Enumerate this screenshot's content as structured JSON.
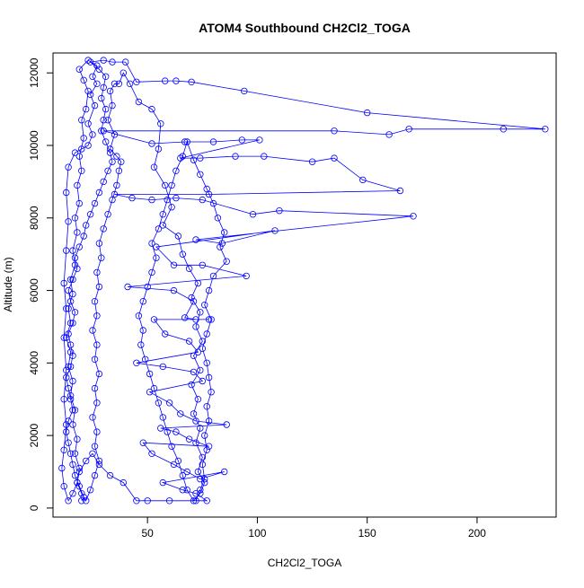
{
  "chart_data": {
    "type": "scatter",
    "title": "ATOM4 Southbound CH2Cl2_TOGA",
    "xlabel": "CH2Cl2_TOGA",
    "ylabel": "Altitude (m)",
    "xlim": [
      7,
      236
    ],
    "ylim": [
      -250,
      12550
    ],
    "xticks": [
      50,
      100,
      150,
      200
    ],
    "yticks": [
      0,
      2000,
      4000,
      6000,
      8000,
      10000,
      12000
    ],
    "grid": false,
    "legend": "none",
    "marker": "open-circle",
    "connected": true,
    "series": [
      {
        "color": "#0000ff",
        "points": [
          [
            20,
            200
          ],
          [
            21,
            300
          ],
          [
            19,
            600
          ],
          [
            17,
            900
          ],
          [
            16,
            1200
          ],
          [
            15,
            1500
          ],
          [
            14,
            1800
          ],
          [
            13,
            2100
          ],
          [
            14,
            2400
          ],
          [
            16,
            2700
          ],
          [
            15,
            3000
          ],
          [
            14,
            3300
          ],
          [
            13,
            3600
          ],
          [
            15,
            3900
          ],
          [
            16,
            4200
          ],
          [
            15,
            4500
          ],
          [
            14,
            4800
          ],
          [
            16,
            5100
          ],
          [
            17,
            5400
          ],
          [
            15,
            5700
          ],
          [
            14,
            6000
          ],
          [
            16,
            6300
          ],
          [
            18,
            6600
          ],
          [
            17,
            6900
          ],
          [
            19,
            7200
          ],
          [
            21,
            7500
          ],
          [
            22,
            7800
          ],
          [
            24,
            8100
          ],
          [
            26,
            8400
          ],
          [
            28,
            8700
          ],
          [
            30,
            9000
          ],
          [
            32,
            9300
          ],
          [
            34,
            9550
          ],
          [
            33,
            9800
          ],
          [
            31,
            10100
          ],
          [
            29,
            10400
          ],
          [
            30,
            10700
          ],
          [
            31,
            11000
          ],
          [
            29,
            11300
          ],
          [
            30,
            11600
          ],
          [
            31,
            11900
          ],
          [
            28,
            12100
          ],
          [
            24,
            12300
          ],
          [
            30,
            12350
          ],
          [
            34,
            12300
          ],
          [
            40,
            12300
          ],
          [
            45,
            11750
          ],
          [
            58,
            11780
          ],
          [
            63,
            11780
          ],
          [
            70,
            11750
          ],
          [
            94,
            11500
          ],
          [
            150,
            10900
          ],
          [
            231,
            10450
          ],
          [
            212,
            10450
          ],
          [
            169,
            10450
          ],
          [
            160,
            10300
          ],
          [
            135,
            10400
          ],
          [
            30,
            10400
          ],
          [
            52,
            10050
          ],
          [
            67,
            10100
          ],
          [
            80,
            10100
          ],
          [
            93,
            10150
          ],
          [
            101,
            10150
          ],
          [
            65,
            9650
          ],
          [
            74,
            9650
          ],
          [
            90,
            9700
          ],
          [
            103,
            9700
          ],
          [
            125,
            9550
          ],
          [
            135,
            9650
          ],
          [
            148,
            9050
          ],
          [
            165,
            8750
          ],
          [
            78,
            8650
          ],
          [
            35,
            8650
          ],
          [
            43,
            8550
          ],
          [
            52,
            8500
          ],
          [
            63,
            8550
          ],
          [
            75,
            8500
          ],
          [
            98,
            8100
          ],
          [
            110,
            8200
          ],
          [
            171,
            8050
          ],
          [
            72,
            7400
          ],
          [
            84,
            7300
          ],
          [
            108,
            7650
          ],
          [
            54,
            7200
          ],
          [
            62,
            6700
          ],
          [
            75,
            6700
          ],
          [
            95,
            6400
          ],
          [
            41,
            6100
          ],
          [
            62,
            6000
          ],
          [
            71,
            5700
          ],
          [
            67,
            5250
          ],
          [
            72,
            5200
          ],
          [
            78,
            5200
          ],
          [
            53,
            5200
          ],
          [
            58,
            4800
          ],
          [
            69,
            4600
          ],
          [
            73,
            4300
          ],
          [
            45,
            4000
          ],
          [
            57,
            3900
          ],
          [
            71,
            3750
          ],
          [
            75,
            3500
          ],
          [
            51,
            3200
          ],
          [
            60,
            2900
          ],
          [
            65,
            2600
          ],
          [
            72,
            2400
          ],
          [
            86,
            2300
          ],
          [
            56,
            2200
          ],
          [
            63,
            2100
          ],
          [
            69,
            1900
          ],
          [
            78,
            1700
          ],
          [
            48,
            1800
          ],
          [
            52,
            1500
          ],
          [
            62,
            1200
          ],
          [
            68,
            1000
          ],
          [
            74,
            800
          ],
          [
            85,
            1000
          ],
          [
            57,
            700
          ],
          [
            66,
            500
          ],
          [
            72,
            400
          ],
          [
            77,
            200
          ],
          [
            60,
            200
          ],
          [
            50,
            200
          ],
          [
            45,
            200
          ],
          [
            39,
            700
          ],
          [
            33,
            900
          ],
          [
            28,
            1200
          ],
          [
            25,
            1500
          ],
          [
            22,
            1300
          ],
          [
            19,
            1000
          ],
          [
            18,
            700
          ],
          [
            16,
            400
          ],
          [
            14,
            200
          ],
          [
            12,
            600
          ],
          [
            11,
            1100
          ],
          [
            12,
            1600
          ],
          [
            13,
            2300
          ],
          [
            12,
            3000
          ],
          [
            13,
            3800
          ],
          [
            12,
            4700
          ],
          [
            13,
            5500
          ],
          [
            12,
            6200
          ],
          [
            13,
            7100
          ],
          [
            14,
            7900
          ],
          [
            13,
            8700
          ],
          [
            14,
            9400
          ],
          [
            17,
            9800
          ],
          [
            20,
            9900
          ],
          [
            23,
            10000
          ],
          [
            25,
            10300
          ],
          [
            23,
            10600
          ],
          [
            26,
            11100
          ],
          [
            24,
            11400
          ],
          [
            27,
            11700
          ],
          [
            25,
            11900
          ],
          [
            27,
            12200
          ],
          [
            23,
            12350
          ],
          [
            19,
            12100
          ],
          [
            21,
            11800
          ],
          [
            23,
            11500
          ],
          [
            22,
            11000
          ],
          [
            20,
            10700
          ],
          [
            21,
            10200
          ],
          [
            19,
            9700
          ],
          [
            20,
            9300
          ],
          [
            18,
            8900
          ],
          [
            19,
            8400
          ],
          [
            17,
            8000
          ],
          [
            18,
            7600
          ],
          [
            16,
            7100
          ],
          [
            17,
            6700
          ],
          [
            15,
            6300
          ],
          [
            16,
            5900
          ],
          [
            14,
            5500
          ],
          [
            15,
            5100
          ],
          [
            13,
            4700
          ],
          [
            15,
            4300
          ],
          [
            14,
            3900
          ],
          [
            16,
            3500
          ],
          [
            15,
            3100
          ],
          [
            17,
            2700
          ],
          [
            16,
            2300
          ],
          [
            18,
            1900
          ],
          [
            17,
            1500
          ],
          [
            19,
            1100
          ],
          [
            18,
            700
          ],
          [
            20,
            400
          ],
          [
            22,
            200
          ],
          [
            24,
            500
          ],
          [
            26,
            900
          ],
          [
            28,
            1300
          ],
          [
            26,
            1700
          ],
          [
            27,
            2100
          ],
          [
            25,
            2500
          ],
          [
            27,
            2900
          ],
          [
            26,
            3300
          ],
          [
            28,
            3700
          ],
          [
            26,
            4100
          ],
          [
            27,
            4500
          ],
          [
            25,
            4900
          ],
          [
            27,
            5300
          ],
          [
            26,
            5700
          ],
          [
            28,
            6100
          ],
          [
            27,
            6500
          ],
          [
            29,
            6900
          ],
          [
            28,
            7300
          ],
          [
            30,
            7700
          ],
          [
            32,
            8100
          ],
          [
            34,
            8500
          ],
          [
            36,
            8900
          ],
          [
            37,
            9300
          ],
          [
            38,
            9550
          ],
          [
            36,
            9700
          ],
          [
            33,
            9900
          ],
          [
            35,
            10300
          ],
          [
            32,
            10700
          ],
          [
            34,
            11100
          ],
          [
            33,
            11500
          ],
          [
            35,
            11700
          ],
          [
            37,
            11700
          ],
          [
            39,
            12000
          ],
          [
            42,
            11700
          ],
          [
            46,
            11200
          ],
          [
            52,
            11000
          ],
          [
            56,
            10600
          ],
          [
            55,
            9900
          ],
          [
            53,
            9400
          ],
          [
            58,
            8900
          ],
          [
            61,
            8300
          ],
          [
            57,
            7800
          ],
          [
            64,
            7500
          ],
          [
            66,
            7000
          ],
          [
            69,
            6600
          ],
          [
            73,
            6200
          ],
          [
            70,
            5800
          ],
          [
            74,
            5400
          ],
          [
            72,
            5000
          ],
          [
            75,
            4600
          ],
          [
            71,
            4200
          ],
          [
            74,
            3800
          ],
          [
            70,
            3400
          ],
          [
            73,
            3000
          ],
          [
            71,
            2600
          ],
          [
            74,
            2200
          ],
          [
            72,
            1800
          ],
          [
            75,
            1400
          ],
          [
            73,
            1000
          ],
          [
            76,
            700
          ],
          [
            74,
            400
          ],
          [
            71,
            200
          ],
          [
            68,
            500
          ],
          [
            66,
            900
          ],
          [
            64,
            1300
          ],
          [
            61,
            1700
          ],
          [
            59,
            2100
          ],
          [
            57,
            2500
          ],
          [
            55,
            2900
          ],
          [
            53,
            3300
          ],
          [
            51,
            3700
          ],
          [
            49,
            4100
          ],
          [
            47,
            4500
          ],
          [
            48,
            4900
          ],
          [
            46,
            5300
          ],
          [
            48,
            5700
          ],
          [
            50,
            6100
          ],
          [
            52,
            6500
          ],
          [
            54,
            6900
          ],
          [
            52,
            7300
          ],
          [
            55,
            7700
          ],
          [
            57,
            8100
          ],
          [
            59,
            8500
          ],
          [
            61,
            8900
          ],
          [
            63,
            9300
          ],
          [
            66,
            9700
          ],
          [
            68,
            10100
          ],
          [
            71,
            9600
          ],
          [
            74,
            9200
          ],
          [
            77,
            8800
          ],
          [
            80,
            8400
          ],
          [
            82,
            8000
          ],
          [
            85,
            7600
          ],
          [
            83,
            7200
          ],
          [
            86,
            6800
          ],
          [
            80,
            6400
          ],
          [
            78,
            6000
          ],
          [
            76,
            5600
          ],
          [
            79,
            5200
          ],
          [
            77,
            4800
          ],
          [
            75,
            4400
          ],
          [
            77,
            4000
          ],
          [
            78,
            3600
          ],
          [
            79,
            3200
          ],
          [
            77,
            2800
          ],
          [
            78,
            2400
          ],
          [
            76,
            2000
          ],
          [
            77,
            1600
          ],
          [
            75,
            1200
          ],
          [
            76,
            800
          ],
          [
            74,
            500
          ],
          [
            72,
            200
          ]
        ]
      }
    ]
  }
}
